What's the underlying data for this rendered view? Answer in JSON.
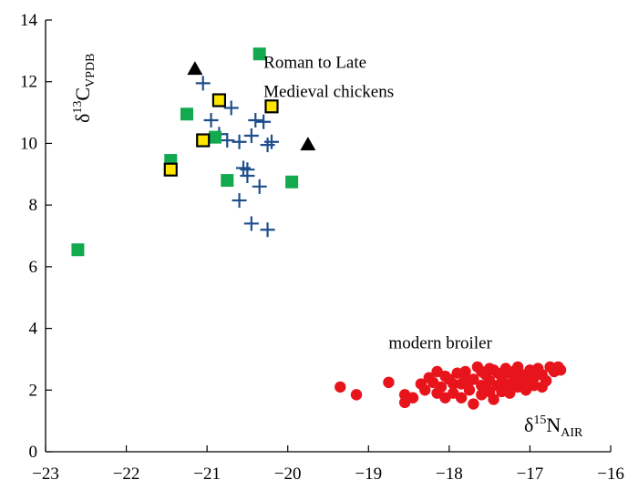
{
  "chart_data": {
    "type": "scatter",
    "xlabel": {
      "base": "δ",
      "sup": "15",
      "main": "N",
      "sub": "AIR"
    },
    "ylabel": {
      "base": "δ",
      "sup": "13",
      "main": "C",
      "sub": "VPDB"
    },
    "xlim": [
      -23,
      -16
    ],
    "ylim": [
      0,
      14
    ],
    "xticks": [
      -23,
      -22,
      -21,
      -20,
      -19,
      -18,
      -17,
      -16
    ],
    "yticks": [
      0,
      2,
      4,
      6,
      8,
      10,
      12,
      14
    ],
    "grid": false,
    "annotations": [
      {
        "text": "Roman to Late",
        "x": -20.3,
        "y": 12.45
      },
      {
        "text": "Medieval chickens",
        "x": -20.3,
        "y": 11.5
      },
      {
        "text": "modern broiler",
        "x": -18.75,
        "y": 3.35
      }
    ],
    "colors": {
      "cross": "#1f4e8c",
      "green": "#12a94f",
      "yellow_fill": "#ffe600",
      "yellow_edge": "#000000",
      "triangle": "#000000",
      "red": "#e8141c"
    },
    "series": [
      {
        "marker": "cross",
        "points": [
          [
            -21.05,
            11.95
          ],
          [
            -20.95,
            10.75
          ],
          [
            -20.7,
            11.15
          ],
          [
            -20.75,
            10.1
          ],
          [
            -20.6,
            10.05
          ],
          [
            -20.85,
            10.3
          ],
          [
            -20.45,
            10.25
          ],
          [
            -20.4,
            10.75
          ],
          [
            -20.3,
            10.7
          ],
          [
            -20.25,
            9.95
          ],
          [
            -20.2,
            10.05
          ],
          [
            -20.55,
            9.2
          ],
          [
            -20.5,
            9.15
          ],
          [
            -20.5,
            8.95
          ],
          [
            -20.35,
            8.6
          ],
          [
            -20.6,
            8.15
          ],
          [
            -20.45,
            7.4
          ],
          [
            -20.25,
            7.2
          ]
        ]
      },
      {
        "marker": "green-square",
        "points": [
          [
            -20.35,
            12.9
          ],
          [
            -21.25,
            10.95
          ],
          [
            -20.9,
            10.2
          ],
          [
            -21.45,
            9.45
          ],
          [
            -20.75,
            8.8
          ],
          [
            -19.95,
            8.75
          ],
          [
            -22.6,
            6.55
          ]
        ]
      },
      {
        "marker": "yellow-square",
        "points": [
          [
            -20.85,
            11.4
          ],
          [
            -20.2,
            11.2
          ],
          [
            -21.05,
            10.1
          ],
          [
            -21.45,
            9.15
          ]
        ]
      },
      {
        "marker": "triangle",
        "points": [
          [
            -21.15,
            12.4
          ],
          [
            -19.75,
            9.95
          ]
        ]
      },
      {
        "marker": "red-circle",
        "points": [
          [
            -19.35,
            2.1
          ],
          [
            -19.15,
            1.85
          ],
          [
            -18.75,
            2.25
          ],
          [
            -18.55,
            1.85
          ],
          [
            -18.55,
            1.6
          ],
          [
            -18.45,
            1.75
          ],
          [
            -18.35,
            2.2
          ],
          [
            -18.3,
            2.0
          ],
          [
            -18.2,
            2.25
          ],
          [
            -18.15,
            1.9
          ],
          [
            -18.15,
            2.6
          ],
          [
            -18.1,
            2.1
          ],
          [
            -18.05,
            1.75
          ],
          [
            -18.0,
            2.35
          ],
          [
            -17.95,
            1.9
          ],
          [
            -17.9,
            2.55
          ],
          [
            -17.85,
            2.2
          ],
          [
            -17.85,
            1.75
          ],
          [
            -17.8,
            2.6
          ],
          [
            -17.75,
            2.0
          ],
          [
            -17.7,
            2.35
          ],
          [
            -17.7,
            1.55
          ],
          [
            -17.65,
            2.75
          ],
          [
            -17.6,
            2.15
          ],
          [
            -17.6,
            1.85
          ],
          [
            -17.55,
            2.5
          ],
          [
            -17.5,
            2.3
          ],
          [
            -17.5,
            1.95
          ],
          [
            -17.45,
            2.65
          ],
          [
            -17.45,
            1.7
          ],
          [
            -17.4,
            2.15
          ],
          [
            -17.35,
            2.45
          ],
          [
            -17.35,
            1.95
          ],
          [
            -17.3,
            2.7
          ],
          [
            -17.3,
            2.2
          ],
          [
            -17.25,
            2.55
          ],
          [
            -17.25,
            1.9
          ],
          [
            -17.2,
            2.35
          ],
          [
            -17.15,
            2.75
          ],
          [
            -17.15,
            2.1
          ],
          [
            -17.1,
            2.5
          ],
          [
            -17.05,
            2.3
          ],
          [
            -17.05,
            2.0
          ],
          [
            -17.0,
            2.65
          ],
          [
            -16.95,
            2.4
          ],
          [
            -16.95,
            2.15
          ],
          [
            -16.9,
            2.7
          ],
          [
            -16.85,
            2.5
          ],
          [
            -16.8,
            2.3
          ],
          [
            -16.75,
            2.75
          ],
          [
            -16.7,
            2.6
          ],
          [
            -16.65,
            2.75
          ],
          [
            -16.62,
            2.65
          ],
          [
            -17.8,
            2.4
          ],
          [
            -17.6,
            2.6
          ],
          [
            -17.4,
            2.55
          ],
          [
            -17.2,
            2.6
          ],
          [
            -17.0,
            2.5
          ],
          [
            -16.9,
            2.55
          ],
          [
            -17.95,
            2.2
          ],
          [
            -17.5,
            2.7
          ],
          [
            -17.35,
            2.25
          ],
          [
            -17.1,
            2.2
          ],
          [
            -16.85,
            2.1
          ],
          [
            -18.05,
            2.45
          ],
          [
            -17.75,
            2.3
          ],
          [
            -17.55,
            2.15
          ],
          [
            -17.25,
            2.1
          ],
          [
            -17.0,
            2.2
          ],
          [
            -18.25,
            2.4
          ]
        ]
      }
    ]
  }
}
